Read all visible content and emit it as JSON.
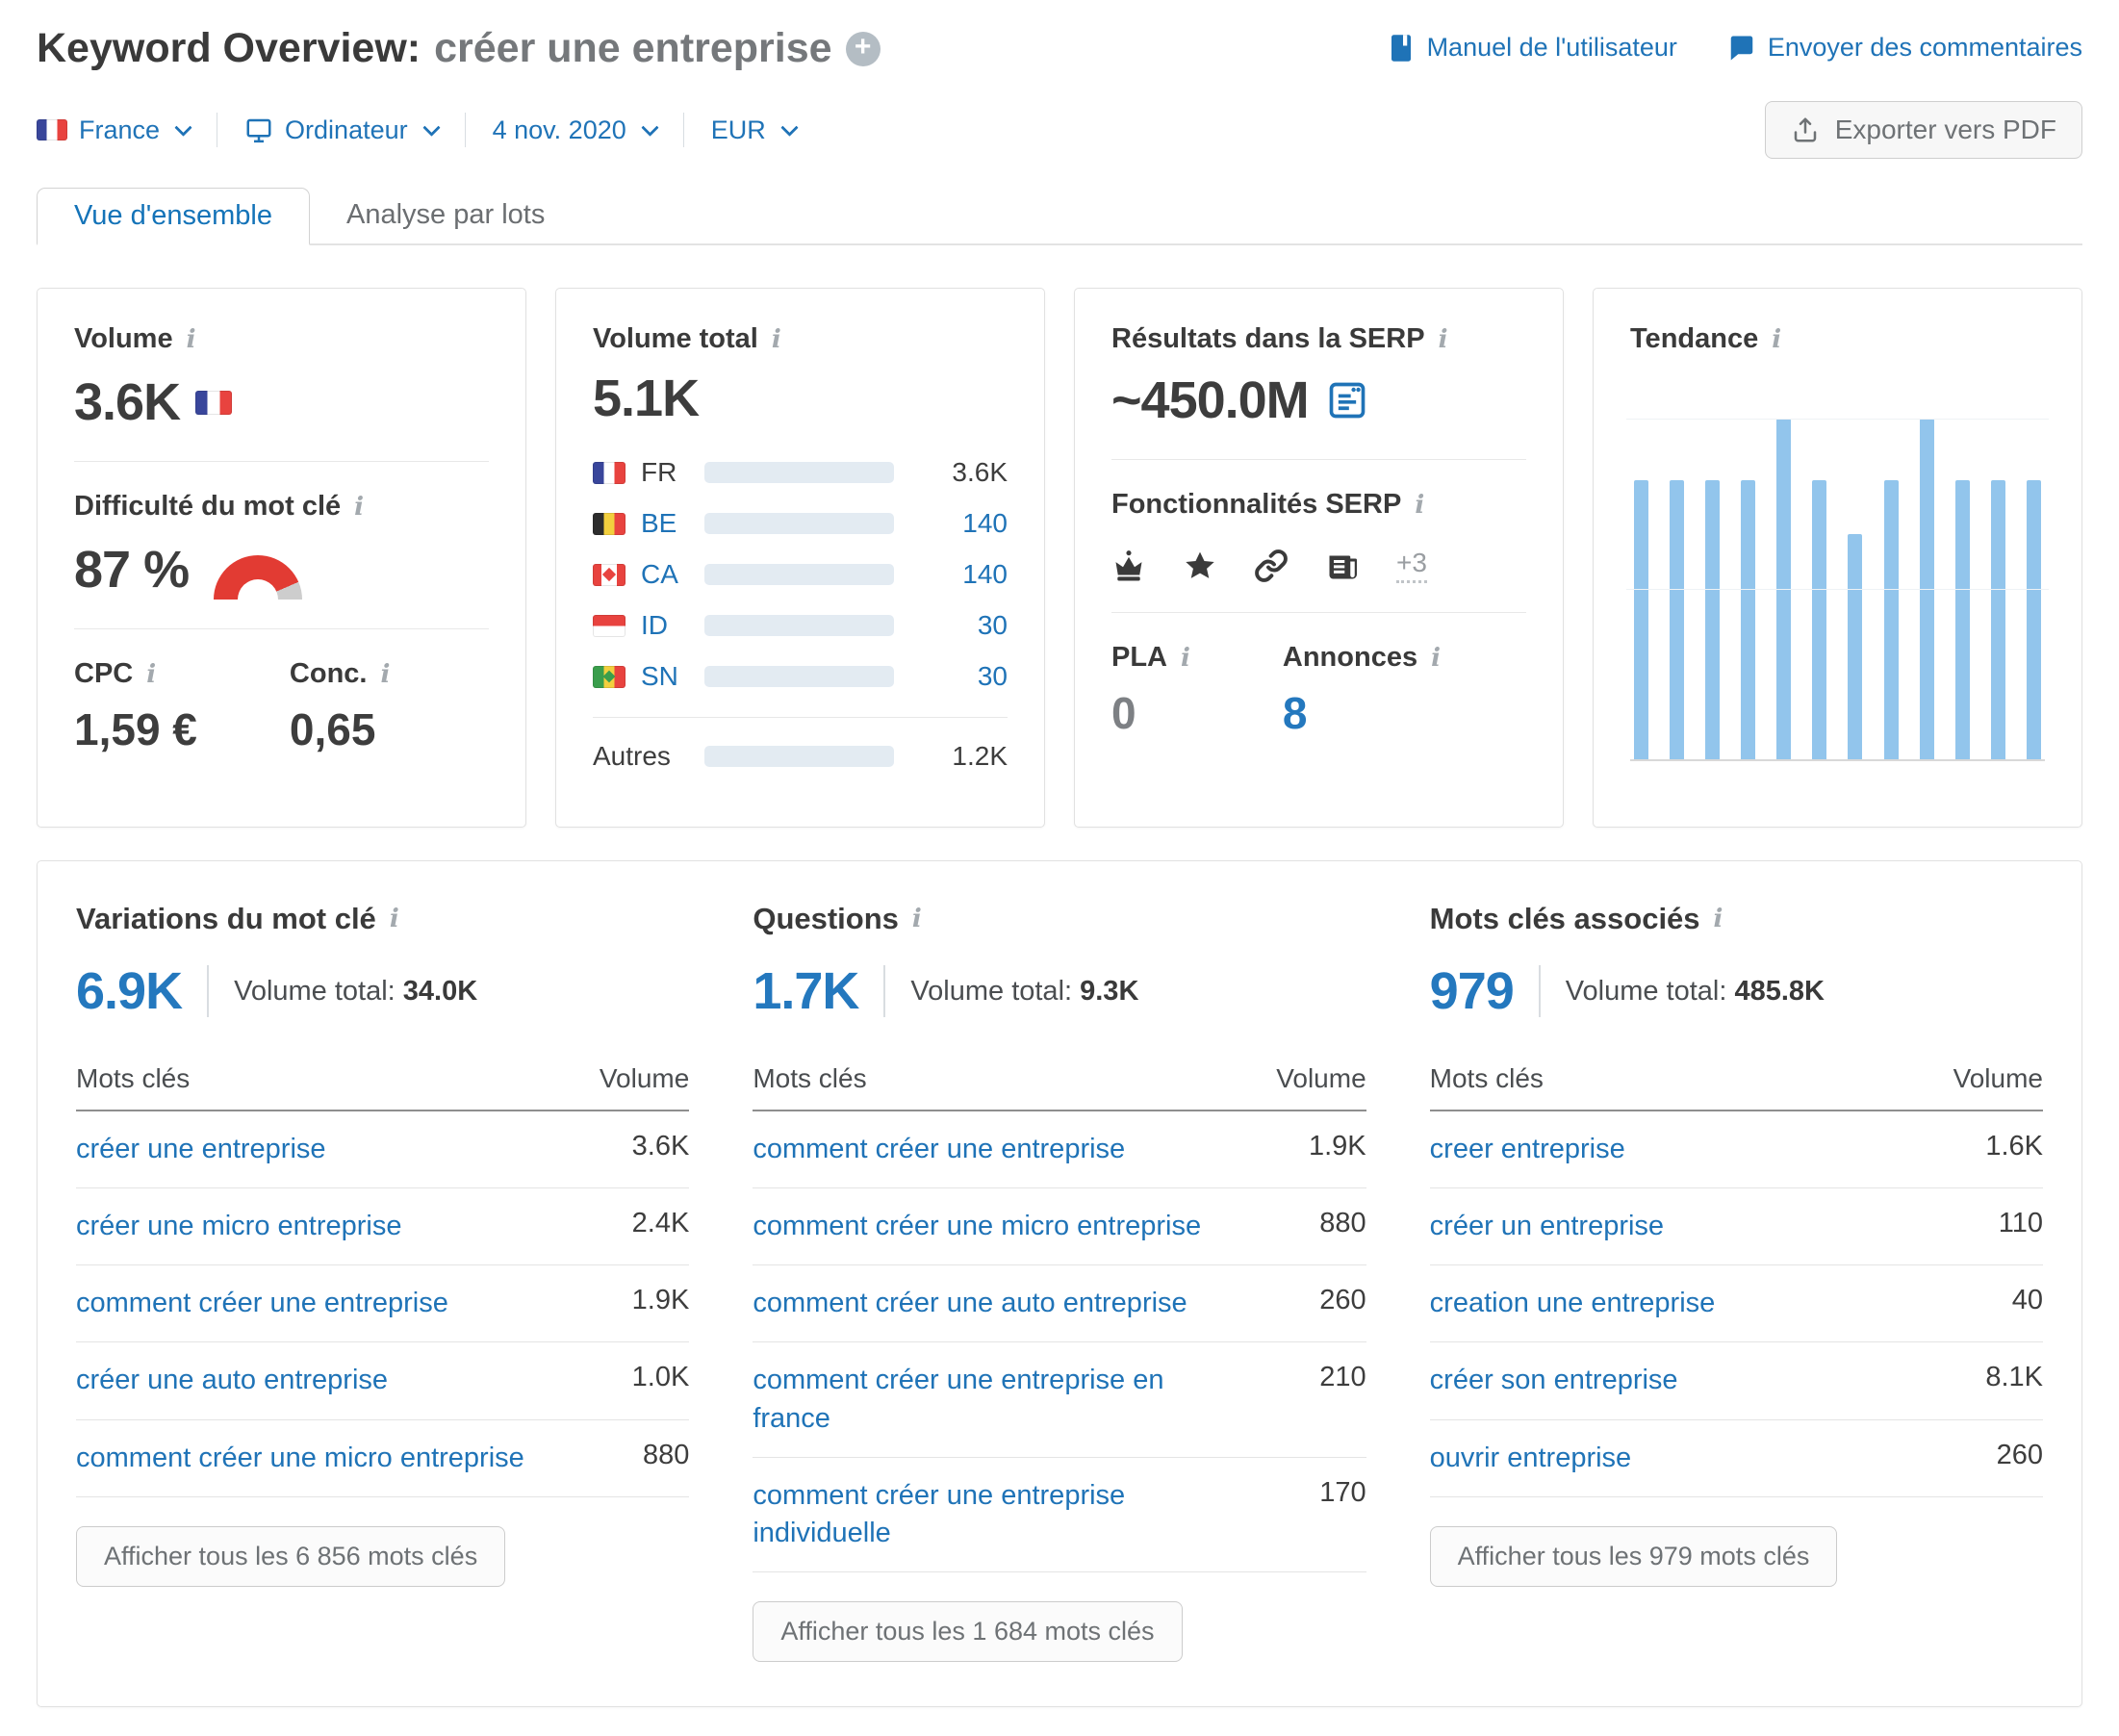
{
  "page": {
    "title": "Keyword Overview:",
    "keyword": "créer une entreprise"
  },
  "header": {
    "manual_link": "Manuel de l'utilisateur",
    "feedback_link": "Envoyer des commentaires",
    "export_button": "Exporter vers PDF"
  },
  "filters": {
    "country": "France",
    "device": "Ordinateur",
    "date": "4 nov. 2020",
    "currency": "EUR"
  },
  "tabs": {
    "overview": "Vue d'ensemble",
    "bulk": "Analyse par lots"
  },
  "cards": {
    "volume": {
      "title": "Volume",
      "value": "3.6K",
      "flag": "FR",
      "difficulty_title": "Difficulté du mot clé",
      "difficulty_value": "87 %",
      "difficulty_pct": 87,
      "difficulty_color": "#e23b33",
      "cpc_label": "CPC",
      "cpc_value": "1,59 €",
      "conc_label": "Conc.",
      "conc_value": "0,65"
    },
    "volume_total": {
      "title": "Volume total",
      "value": "5.1K",
      "rows": [
        {
          "code": "FR",
          "value": "3.6K",
          "fill": 0.71
        },
        {
          "code": "BE",
          "value": "140",
          "fill": 0.02
        },
        {
          "code": "CA",
          "value": "140",
          "fill": 0.02
        },
        {
          "code": "ID",
          "value": "30",
          "fill": 0.02
        },
        {
          "code": "SN",
          "value": "30",
          "fill": 0.02
        }
      ],
      "others": {
        "label": "Autres",
        "value": "1.2K",
        "fill": 0.23
      }
    },
    "serp": {
      "title": "Résultats dans la SERP",
      "value": "~450.0M",
      "features_title": "Fonctionnalités SERP",
      "features": [
        "crown-icon",
        "star-icon",
        "link-icon",
        "news-icon"
      ],
      "features_more": "+3",
      "pla_label": "PLA",
      "pla_value": "0",
      "ads_label": "Annonces",
      "ads_value": "8"
    },
    "trend": {
      "title": "Tendance"
    }
  },
  "chart_data": {
    "type": "bar",
    "title": "Tendance",
    "x": [
      1,
      2,
      3,
      4,
      5,
      6,
      7,
      8,
      9,
      10,
      11,
      12
    ],
    "values": [
      0.82,
      0.82,
      0.82,
      0.82,
      1.0,
      0.82,
      0.66,
      0.82,
      1.0,
      0.82,
      0.82,
      0.82
    ],
    "xlabel": "",
    "ylabel": "",
    "ylim": [
      0,
      1
    ],
    "grid": "two light horizontal gridlines (top and middle), gray baseline",
    "legend": "none",
    "bar_color": "#92c5ec",
    "note": "12 monthly search-volume bars, no axis tick labels visible; values normalized to tallest bar"
  },
  "tables": [
    {
      "title": "Variations du mot clé",
      "count": "6.9K",
      "total_label": "Volume total:",
      "total_value": "34.0K",
      "col_keyword": "Mots clés",
      "col_volume": "Volume",
      "rows": [
        {
          "keyword": "créer une entreprise",
          "volume": "3.6K"
        },
        {
          "keyword": "créer une micro entreprise",
          "volume": "2.4K"
        },
        {
          "keyword": "comment créer une entreprise",
          "volume": "1.9K"
        },
        {
          "keyword": "créer une auto entreprise",
          "volume": "1.0K"
        },
        {
          "keyword": "comment créer une micro entreprise",
          "volume": "880"
        }
      ],
      "button": "Afficher tous les 6 856 mots clés"
    },
    {
      "title": "Questions",
      "count": "1.7K",
      "total_label": "Volume total:",
      "total_value": "9.3K",
      "col_keyword": "Mots clés",
      "col_volume": "Volume",
      "rows": [
        {
          "keyword": "comment créer une entreprise",
          "volume": "1.9K"
        },
        {
          "keyword": "comment créer une micro entreprise",
          "volume": "880"
        },
        {
          "keyword": "comment créer une auto entreprise",
          "volume": "260"
        },
        {
          "keyword": "comment créer une entreprise en france",
          "volume": "210"
        },
        {
          "keyword": "comment créer une entreprise individuelle",
          "volume": "170"
        }
      ],
      "button": "Afficher tous les 1 684 mots clés"
    },
    {
      "title": "Mots clés associés",
      "count": "979",
      "total_label": "Volume total:",
      "total_value": "485.8K",
      "col_keyword": "Mots clés",
      "col_volume": "Volume",
      "rows": [
        {
          "keyword": "creer entreprise",
          "volume": "1.6K"
        },
        {
          "keyword": "créer un entreprise",
          "volume": "110"
        },
        {
          "keyword": "creation une entreprise",
          "volume": "40"
        },
        {
          "keyword": "créer son entreprise",
          "volume": "8.1K"
        },
        {
          "keyword": "ouvrir entreprise",
          "volume": "260"
        }
      ],
      "button": "Afficher tous les 979 mots clés"
    }
  ]
}
